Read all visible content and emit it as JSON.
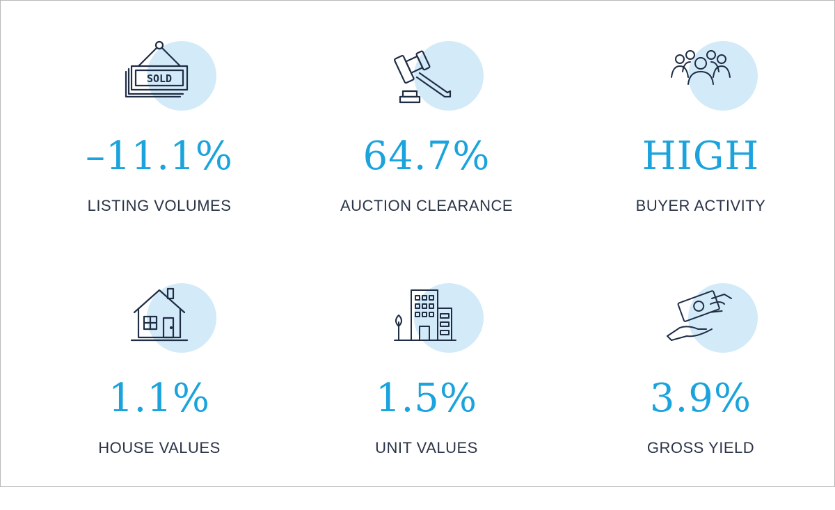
{
  "colors": {
    "accent": "#1aa3dc",
    "bubble": "#d3eaf8",
    "label": "#2a3447",
    "icon_stroke": "#1f2d45"
  },
  "cards": [
    {
      "icon": "sold-sign-icon",
      "sign_text": "SOLD",
      "value": "–11.1%",
      "label": "LISTING VOLUMES"
    },
    {
      "icon": "auction-gavel-icon",
      "value": "64.7%",
      "label": "AUCTION CLEARANCE"
    },
    {
      "icon": "group-people-icon",
      "value": "HIGH",
      "label": "BUYER ACTIVITY"
    },
    {
      "icon": "house-icon",
      "value": "1.1%",
      "label": "HOUSE VALUES"
    },
    {
      "icon": "apartment-building-icon",
      "value": "1.5%",
      "label": "UNIT VALUES"
    },
    {
      "icon": "money-hand-icon",
      "value": "3.9%",
      "label": "GROSS YIELD"
    }
  ]
}
